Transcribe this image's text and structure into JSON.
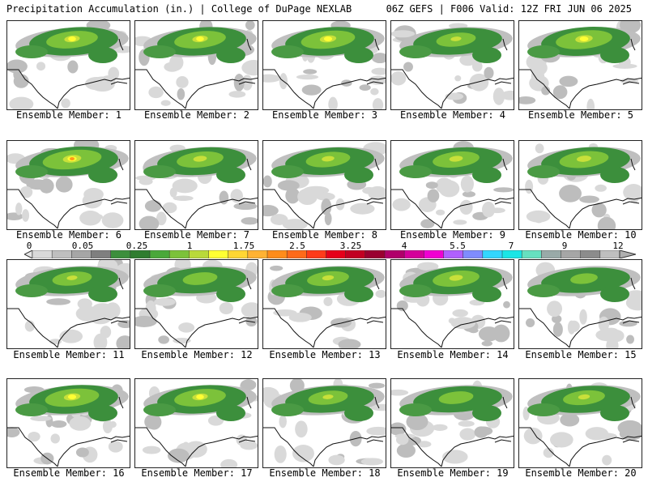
{
  "header": {
    "left": "Precipitation Accumulation (in.) | College of DuPage NEXLAB",
    "right": "06Z GEFS | F006 Valid: 12Z FRI JUN 06 2025"
  },
  "panels": [
    {
      "label": "Ensemble Member: 1",
      "intensity": 0.8
    },
    {
      "label": "Ensemble Member: 2",
      "intensity": 0.8
    },
    {
      "label": "Ensemble Member: 3",
      "intensity": 0.85
    },
    {
      "label": "Ensemble Member: 4",
      "intensity": 0.55
    },
    {
      "label": "Ensemble Member: 5",
      "intensity": 0.9
    },
    {
      "label": "Ensemble Member: 6",
      "intensity": 0.95
    },
    {
      "label": "Ensemble Member: 7",
      "intensity": 0.7
    },
    {
      "label": "Ensemble Member: 8",
      "intensity": 0.65
    },
    {
      "label": "Ensemble Member: 9",
      "intensity": 0.7
    },
    {
      "label": "Ensemble Member: 10",
      "intensity": 0.75
    },
    {
      "label": "Ensemble Member: 11",
      "intensity": 0.55
    },
    {
      "label": "Ensemble Member: 12",
      "intensity": 0.45
    },
    {
      "label": "Ensemble Member: 13",
      "intensity": 0.6
    },
    {
      "label": "Ensemble Member: 14",
      "intensity": 0.7
    },
    {
      "label": "Ensemble Member: 15",
      "intensity": 0.3
    },
    {
      "label": "Ensemble Member: 16",
      "intensity": 0.85
    },
    {
      "label": "Ensemble Member: 17",
      "intensity": 0.8
    },
    {
      "label": "Ensemble Member: 18",
      "intensity": 0.55
    },
    {
      "label": "Ensemble Member: 19",
      "intensity": 0.45
    },
    {
      "label": "Ensemble Member: 20",
      "intensity": 0.6
    }
  ],
  "colorbar": {
    "ticks": [
      "0",
      "0.05",
      "0.25",
      "1",
      "1.75",
      "2.5",
      "3.25",
      "4",
      "5.5",
      "7",
      "9",
      "12"
    ],
    "colors": [
      "#d9d9d9",
      "#bfbfbf",
      "#a6a6a6",
      "#7f7f7f",
      "#3c8f3c",
      "#2f7d2f",
      "#4aa83a",
      "#7cc23a",
      "#b9d93a",
      "#ffff33",
      "#ffd633",
      "#ffb233",
      "#ff8c1a",
      "#ff6a1a",
      "#ff3b1a",
      "#e6001a",
      "#c20022",
      "#9a0030",
      "#b0006a",
      "#d4009a",
      "#f000d2",
      "#b060ff",
      "#7f8cff",
      "#33d6ff",
      "#1ae6e6",
      "#66e0c0",
      "#99aaa8",
      "#a6a6a6",
      "#8c8c8c",
      "#bfbfbf"
    ]
  }
}
